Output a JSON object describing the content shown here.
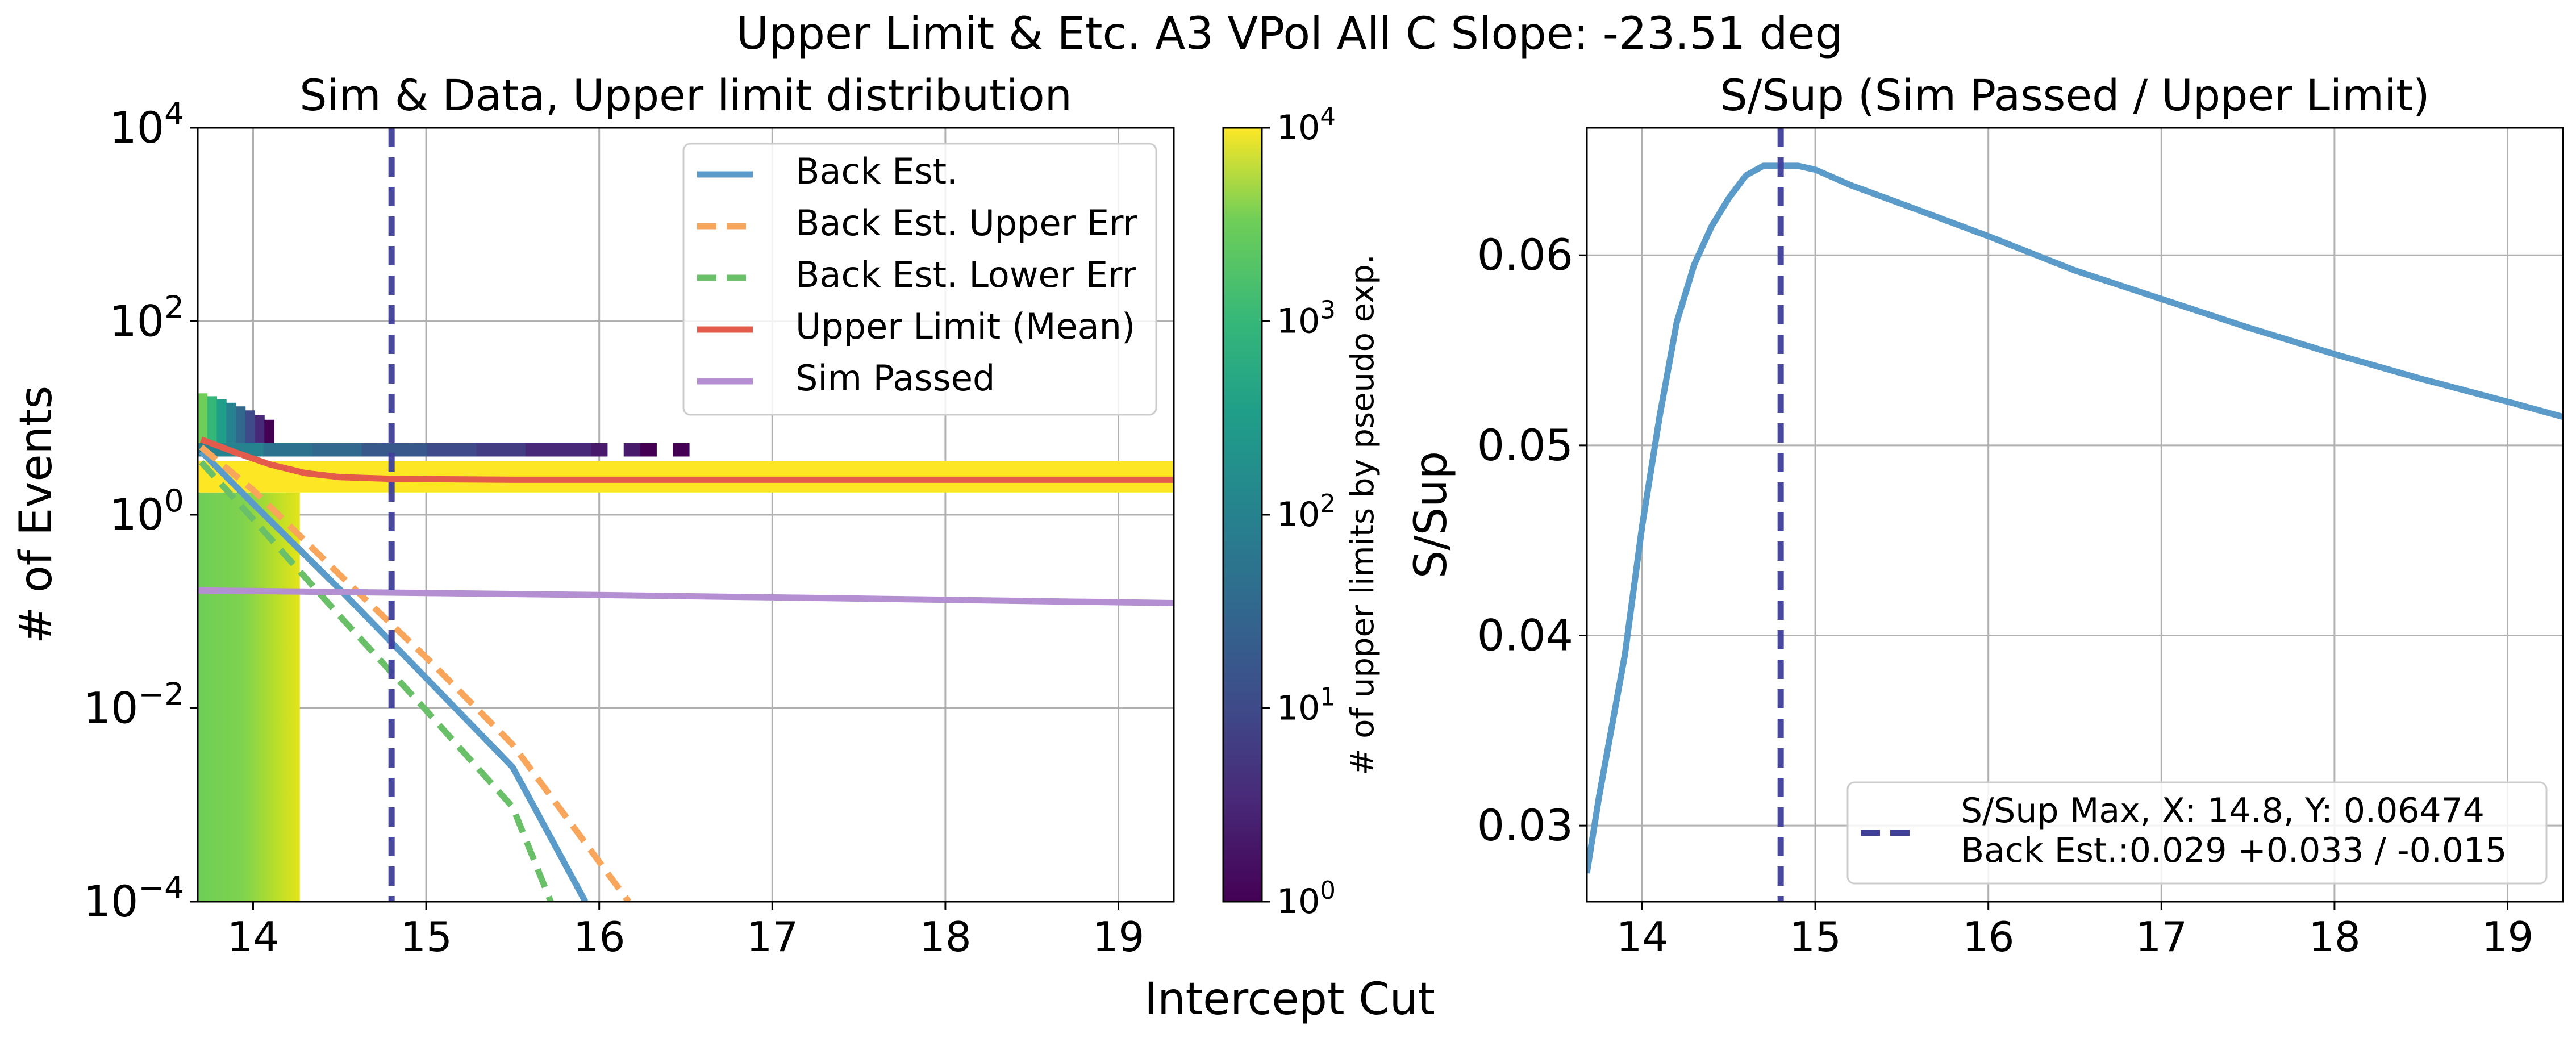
{
  "figure": {
    "suptitle": "Upper Limit & Etc. A3 VPol All C  Slope: -23.51 deg",
    "shared_xlabel": "Intercept Cut"
  },
  "colors": {
    "back_est": "#5a9bc9",
    "upper_err": "#f8a65c",
    "lower_err": "#6abf69",
    "upper_limit": "#e45b4c",
    "sim_passed": "#b48fd2",
    "cut_line": "#3f3f9a",
    "grid": "#b0b0b0"
  },
  "chart_data": [
    {
      "type": "line",
      "title": "Sim & Data, Upper limit distribution",
      "xlabel": "",
      "ylabel": "# of Events",
      "yscale": "log",
      "xlim": [
        13.68,
        19.32
      ],
      "ylim": [
        0.0001,
        10000
      ],
      "xticks": [
        14,
        15,
        16,
        17,
        18,
        19
      ],
      "xtick_labels": [
        "14",
        "15",
        "16",
        "17",
        "18",
        "19"
      ],
      "yticks": [
        0.0001,
        0.01,
        1,
        100,
        10000
      ],
      "ytick_labels": [
        {
          "base": "10",
          "exp": "−4"
        },
        {
          "base": "10",
          "exp": "−2"
        },
        {
          "base": "10",
          "exp": "0"
        },
        {
          "base": "10",
          "exp": "2"
        },
        {
          "base": "10",
          "exp": "4"
        }
      ],
      "grid": true,
      "legend_position": "top-right",
      "vline": {
        "x": 14.8
      },
      "series": [
        {
          "name": "Back Est.",
          "style": "solid",
          "x": [
            13.7,
            14.0,
            14.5,
            15.0,
            15.5,
            15.92
          ],
          "y": [
            4.5,
            1.3,
            0.17,
            0.0205,
            0.00245,
            0.0001
          ]
        },
        {
          "name": "Back Est. Upper Err",
          "style": "dashed",
          "x": [
            13.7,
            14.0,
            14.5,
            15.0,
            15.5,
            16.17
          ],
          "y": [
            5.0,
            1.8,
            0.24,
            0.0335,
            0.0042,
            0.0001
          ]
        },
        {
          "name": "Back Est. Lower Err",
          "style": "dashed",
          "x": [
            13.7,
            14.0,
            14.5,
            15.0,
            15.5,
            15.72
          ],
          "y": [
            3.5,
            0.9,
            0.09,
            0.0095,
            0.00095,
            0.0001
          ]
        },
        {
          "name": "Upper Limit (Mean)",
          "style": "solid",
          "x": [
            13.7,
            13.9,
            14.1,
            14.3,
            14.5,
            14.8,
            15.5,
            17.0,
            19.32
          ],
          "y": [
            6.0,
            4.4,
            3.3,
            2.7,
            2.45,
            2.35,
            2.3,
            2.3,
            2.3
          ]
        },
        {
          "name": "Sim Passed",
          "style": "solid",
          "x": [
            13.68,
            15.0,
            16.0,
            17.0,
            18.0,
            19.32
          ],
          "y": [
            0.165,
            0.155,
            0.148,
            0.14,
            0.132,
            0.122
          ]
        }
      ],
      "heatmap": {
        "description_scale": "log color, counts per bin",
        "yellow_band": {
          "x": [
            13.68,
            19.32
          ],
          "y": [
            1.7,
            3.6
          ],
          "count": 10000
        },
        "low_column": {
          "x": [
            13.68,
            14.27
          ],
          "y": [
            0.0001,
            1.7
          ]
        },
        "sparse_row_y": [
          4.0,
          5.5
        ],
        "sparse_row_x_end": 16.52
      },
      "colorbar": {
        "label": "# of upper limits by pseudo exp.",
        "scale": "log",
        "range": [
          1,
          10000
        ],
        "ticks": [
          {
            "base": "10",
            "exp": "0"
          },
          {
            "base": "10",
            "exp": "1"
          },
          {
            "base": "10",
            "exp": "2"
          },
          {
            "base": "10",
            "exp": "3"
          },
          {
            "base": "10",
            "exp": "4"
          }
        ],
        "colormap": "viridis"
      }
    },
    {
      "type": "line",
      "title": "S/Sup (Sim Passed / Upper Limit)",
      "xlabel": "",
      "ylabel": "S/Sup",
      "xlim": [
        13.68,
        19.32
      ],
      "ylim": [
        0.026,
        0.0667
      ],
      "xticks": [
        14,
        15,
        16,
        17,
        18,
        19
      ],
      "xtick_labels": [
        "14",
        "15",
        "16",
        "17",
        "18",
        "19"
      ],
      "yticks": [
        0.03,
        0.04,
        0.05,
        0.06
      ],
      "ytick_labels": [
        "0.03",
        "0.04",
        "0.05",
        "0.06"
      ],
      "grid": true,
      "legend_position": "bottom-right",
      "vline": {
        "x": 14.8
      },
      "series": [
        {
          "name": "S/Sup",
          "style": "solid",
          "x": [
            13.68,
            13.75,
            13.8,
            13.9,
            14.0,
            14.1,
            14.2,
            14.3,
            14.4,
            14.5,
            14.6,
            14.7,
            14.8,
            14.9,
            15.0,
            15.2,
            15.5,
            16.0,
            16.5,
            17.0,
            17.5,
            18.0,
            18.5,
            19.0,
            19.32
          ],
          "y": [
            0.0275,
            0.0315,
            0.034,
            0.039,
            0.0458,
            0.0515,
            0.0565,
            0.0595,
            0.0615,
            0.063,
            0.0642,
            0.0647,
            0.0647,
            0.0647,
            0.0645,
            0.0637,
            0.0627,
            0.061,
            0.0592,
            0.0577,
            0.0562,
            0.0548,
            0.0535,
            0.0523,
            0.0515
          ]
        }
      ],
      "legend": {
        "entries": [
          "S/Sup Max, X: 14.8, Y: 0.06474",
          "Back Est.:0.029 +0.033 / -0.015"
        ]
      }
    }
  ]
}
